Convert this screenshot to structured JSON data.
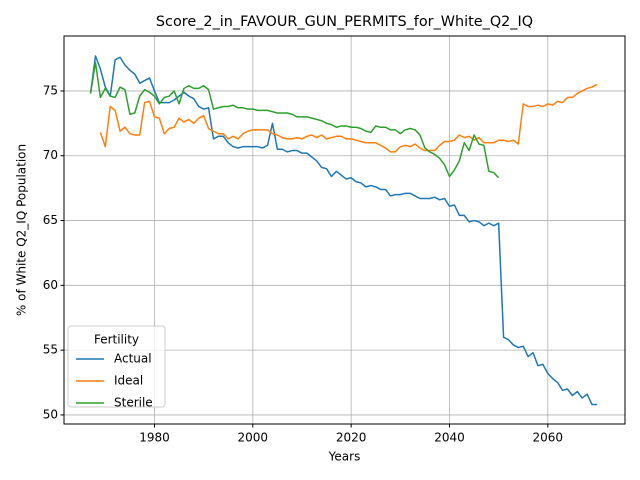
{
  "chart_data": {
    "type": "line",
    "title": "Score_2_in_FAVOUR_GUN_PERMITS_for_White_Q2_IQ",
    "x_label": "Years",
    "y_label": "% of White Q2_IQ Population",
    "x": [
      1967,
      1968,
      1969,
      1970,
      1971,
      1972,
      1973,
      1974,
      1975,
      1976,
      1977,
      1978,
      1979,
      1980,
      1981,
      1982,
      1983,
      1984,
      1985,
      1986,
      1987,
      1988,
      1989,
      1990,
      1991,
      1992,
      1993,
      1994,
      1995,
      1996,
      1997,
      1998,
      1999,
      2000,
      2001,
      2002,
      2003,
      2004,
      2005,
      2006,
      2007,
      2008,
      2009,
      2010,
      2011,
      2012,
      2013,
      2014,
      2015,
      2016,
      2017,
      2018,
      2019,
      2020,
      2021,
      2022,
      2023,
      2024,
      2025,
      2026,
      2027,
      2028,
      2029,
      2030,
      2031,
      2032,
      2033,
      2034,
      2035,
      2036,
      2037,
      2038,
      2039,
      2040,
      2041,
      2042,
      2043,
      2044,
      2045,
      2046,
      2047,
      2048,
      2049,
      2050,
      2051,
      2052,
      2053,
      2054,
      2055,
      2056,
      2057,
      2058,
      2059,
      2060,
      2061,
      2062,
      2063,
      2064,
      2065,
      2066,
      2067,
      2068,
      2069,
      2070
    ],
    "series": [
      {
        "name": "Actual",
        "color": "#1f77b4",
        "values": [
          74.8,
          77.7,
          76.7,
          75.3,
          74.6,
          77.4,
          77.6,
          77.0,
          76.6,
          76.3,
          75.6,
          75.8,
          76.0,
          75.0,
          74.1,
          74.1,
          74.1,
          74.3,
          74.6,
          74.9,
          74.6,
          74.4,
          73.8,
          73.6,
          73.7,
          71.3,
          71.5,
          71.5,
          71.0,
          70.7,
          70.6,
          70.7,
          70.7,
          70.7,
          70.7,
          70.6,
          70.8,
          72.5,
          70.5,
          70.5,
          70.3,
          70.4,
          70.4,
          70.2,
          70.2,
          69.9,
          69.6,
          69.1,
          69.0,
          68.4,
          68.8,
          68.5,
          68.2,
          68.3,
          68.0,
          67.9,
          67.6,
          67.7,
          67.6,
          67.4,
          67.4,
          66.9,
          67.0,
          67.0,
          67.1,
          67.1,
          66.9,
          66.7,
          66.7,
          66.7,
          66.8,
          66.6,
          66.7,
          66.1,
          66.2,
          65.4,
          65.4,
          64.9,
          65.0,
          64.9,
          64.6,
          64.8,
          64.6,
          64.8,
          56.0,
          55.8,
          55.4,
          55.2,
          55.3,
          54.5,
          54.8,
          53.8,
          53.9,
          53.2,
          52.8,
          52.5,
          51.9,
          52.0,
          51.5,
          51.8,
          51.3,
          51.6,
          50.8,
          50.8
        ]
      },
      {
        "name": "Ideal",
        "color": "#ff7f0e",
        "values": [
          null,
          null,
          71.8,
          70.7,
          73.8,
          73.5,
          71.9,
          72.2,
          71.7,
          71.6,
          71.6,
          74.1,
          74.2,
          73.0,
          72.9,
          71.7,
          72.1,
          72.2,
          72.9,
          72.6,
          72.8,
          72.5,
          72.9,
          73.1,
          72.1,
          71.9,
          71.7,
          71.7,
          71.3,
          71.5,
          71.3,
          71.7,
          71.9,
          72.0,
          72.0,
          72.0,
          72.0,
          71.7,
          71.6,
          71.4,
          71.3,
          71.3,
          71.4,
          71.3,
          71.5,
          71.6,
          71.4,
          71.6,
          71.3,
          71.4,
          71.5,
          71.5,
          71.3,
          71.3,
          71.2,
          71.1,
          71.0,
          71.0,
          71.0,
          70.8,
          70.6,
          70.3,
          70.3,
          70.7,
          70.8,
          70.7,
          70.9,
          70.6,
          70.4,
          70.4,
          70.4,
          70.8,
          71.1,
          71.1,
          71.2,
          71.6,
          71.4,
          71.5,
          71.2,
          71.4,
          71.0,
          71.0,
          71.0,
          71.2,
          71.2,
          71.1,
          71.2,
          70.9,
          74.0,
          73.8,
          73.8,
          73.9,
          73.8,
          74.0,
          73.9,
          74.2,
          74.1,
          74.5,
          74.5,
          74.8,
          75.0,
          75.2,
          75.3,
          75.5
        ]
      },
      {
        "name": "Sterile",
        "color": "#2ca02c",
        "values": [
          74.8,
          77.2,
          74.5,
          75.2,
          74.6,
          74.5,
          75.3,
          75.1,
          73.2,
          73.3,
          74.6,
          75.1,
          74.9,
          74.6,
          74.0,
          74.5,
          74.6,
          75.0,
          74.0,
          75.2,
          75.4,
          75.2,
          75.2,
          75.4,
          75.1,
          73.6,
          73.7,
          73.8,
          73.8,
          73.9,
          73.7,
          73.7,
          73.6,
          73.6,
          73.5,
          73.5,
          73.5,
          73.4,
          73.3,
          73.3,
          73.3,
          73.2,
          73.0,
          73.0,
          73.0,
          72.9,
          72.8,
          72.7,
          72.5,
          72.4,
          72.2,
          72.3,
          72.3,
          72.2,
          72.2,
          72.1,
          71.9,
          71.8,
          72.3,
          72.2,
          72.2,
          72.0,
          72.0,
          71.7,
          72.0,
          72.1,
          72.0,
          71.6,
          70.6,
          70.3,
          70.1,
          69.8,
          69.3,
          68.4,
          68.9,
          69.6,
          71.0,
          70.4,
          71.6,
          70.9,
          70.8,
          68.8,
          68.7,
          68.3,
          null,
          null,
          null,
          null,
          null,
          null,
          null,
          null,
          null,
          null,
          null,
          null,
          null,
          null,
          null,
          null,
          null,
          null,
          null,
          null
        ]
      }
    ],
    "xlim": [
      1961.6,
      2075.7
    ],
    "ylim": [
      49.3,
      79.24
    ],
    "xticks": [
      1980,
      2000,
      2020,
      2040,
      2060
    ],
    "yticks": [
      50,
      55,
      60,
      65,
      70,
      75
    ],
    "grid": true,
    "legend": {
      "title": "Fertility",
      "loc": "lower left"
    }
  }
}
